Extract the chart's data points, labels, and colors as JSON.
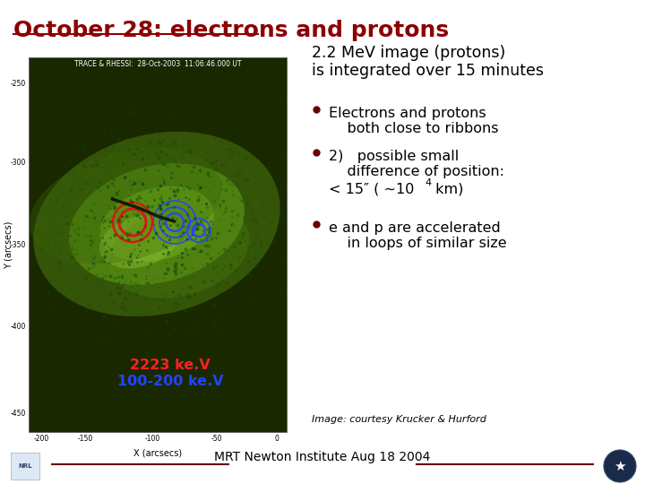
{
  "title": "October 28: electrons and protons",
  "title_color": "#8B0000",
  "title_fontsize": 18,
  "bg_color": "#FFFFFF",
  "bullet_color": "#6B0000",
  "footer_text": "MRT Newton Institute Aug 18 2004",
  "image_label_red": "2223 ke.V",
  "image_label_blue": "100-200 ke.V",
  "courtesy_text": "Image: courtesy Krucker & Hurford",
  "line_color": "#6B0000"
}
